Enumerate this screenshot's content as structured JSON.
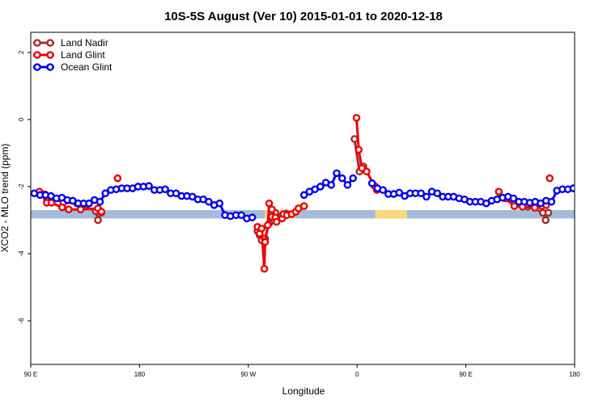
{
  "chart_data": {
    "type": "line",
    "title": "10S-5S August (Ver 10)   2015-01-01 to 2020-12-18",
    "xlabel": "Longitude",
    "ylabel": "XCO2 - MLO trend (ppm)",
    "xlim": [
      90,
      450
    ],
    "ylim": [
      -7.3,
      2.6
    ],
    "x_ticks": [
      {
        "value": 90,
        "label": "90 E"
      },
      {
        "value": 162,
        "label": "180"
      },
      {
        "value": 234,
        "label": "90 W"
      },
      {
        "value": 306,
        "label": "0"
      },
      {
        "value": 378,
        "label": "90 E"
      },
      {
        "value": 450,
        "label": "180"
      }
    ],
    "y_ticks": [
      {
        "value": 2,
        "label": "2"
      },
      {
        "value": 0,
        "label": "0"
      },
      {
        "value": -2,
        "label": "-2"
      },
      {
        "value": -4,
        "label": "-4"
      },
      {
        "value": -6,
        "label": "-6"
      }
    ],
    "legend_position": "top-left",
    "map_strip": {
      "y_range": [
        -2.95,
        -2.7
      ],
      "ocean_color": "#a4bcd9",
      "land_color": "#f8d878",
      "land_spans": [
        [
          245,
          265
        ],
        [
          318,
          339
        ]
      ]
    },
    "series": [
      {
        "name": "Land Nadir",
        "color": "#a52a2a",
        "segments": [
          [
            [
              95.7,
              -2.23
            ],
            [
              99.3,
              -2.23
            ],
            [
              100.6,
              -2.35
            ],
            [
              103.7,
              -2.35
            ],
            [
              111.6,
              -2.47
            ],
            [
              120.6,
              -2.5
            ],
            [
              133.0,
              -2.73
            ],
            [
              134.5,
              -3.0
            ],
            [
              136.8,
              -2.77
            ]
          ],
          [
            [
              240.1,
              -3.33
            ],
            [
              241.5,
              -3.45
            ],
            [
              242.8,
              -3.6
            ],
            [
              245.1,
              -3.55
            ],
            [
              247.8,
              -3.1
            ],
            [
              249.6,
              -2.9
            ],
            [
              251.9,
              -2.78
            ],
            [
              255.5,
              -2.9
            ],
            [
              259.1,
              -2.8
            ]
          ],
          [
            [
              304.3,
              -0.58
            ],
            [
              307.6,
              -1.55
            ],
            [
              310.2,
              -1.4
            ]
          ],
          [
            [
              401.1,
              -2.3
            ],
            [
              404.7,
              -2.35
            ],
            [
              410.1,
              -2.45
            ],
            [
              415.5,
              -2.55
            ],
            [
              419.1,
              -2.6
            ],
            [
              423.6,
              -2.58
            ],
            [
              427.2,
              -2.65
            ],
            [
              429.0,
              -2.78
            ],
            [
              430.8,
              -3.0
            ],
            [
              432.6,
              -2.78
            ]
          ]
        ]
      },
      {
        "name": "Land Glint",
        "color": "#ee0000",
        "segments": [
          [
            [
              95.7,
              -2.15
            ],
            [
              99.3,
              -2.23
            ],
            [
              100.6,
              -2.48
            ],
            [
              103.7,
              -2.48
            ],
            [
              110.8,
              -2.62
            ],
            [
              115.1,
              -2.68
            ],
            [
              123.0,
              -2.68
            ],
            [
              134.5,
              -2.65
            ],
            [
              136.8,
              -2.75
            ]
          ],
          [
            [
              147.5,
              -1.75
            ]
          ],
          [
            [
              240.1,
              -3.2
            ],
            [
              241.5,
              -3.4
            ],
            [
              242.8,
              -3.25
            ],
            [
              244.6,
              -4.45
            ],
            [
              245.1,
              -3.65
            ],
            [
              246.9,
              -3.15
            ],
            [
              247.8,
              -2.5
            ],
            [
              249.6,
              -2.68
            ],
            [
              251.9,
              -2.92
            ],
            [
              252.7,
              -3.05
            ],
            [
              256.4,
              -2.95
            ],
            [
              257.2,
              -2.82
            ],
            [
              259.5,
              -2.85
            ],
            [
              262.7,
              -2.82
            ],
            [
              265.4,
              -2.75
            ],
            [
              267.2,
              -2.65
            ],
            [
              270.9,
              -2.58
            ]
          ],
          [
            [
              305.6,
              0.05
            ],
            [
              307.1,
              -0.9
            ],
            [
              309.2,
              -1.45
            ],
            [
              312.3,
              -1.55
            ],
            [
              317.6,
              -1.98
            ],
            [
              319.1,
              -2.1
            ]
          ],
          [
            [
              399.8,
              -2.15
            ],
            [
              404.0,
              -2.35
            ],
            [
              410.1,
              -2.58
            ],
            [
              415.5,
              -2.6
            ],
            [
              423.6,
              -2.63
            ],
            [
              428.1,
              -2.58
            ],
            [
              431.2,
              -2.55
            ]
          ],
          [
            [
              433.5,
              -1.75
            ]
          ]
        ]
      },
      {
        "name": "Ocean Glint",
        "color": "#0000ee",
        "segments": [
          [
            [
              92.3,
              -2.2
            ],
            [
              96.2,
              -2.25
            ],
            [
              99.8,
              -2.25
            ],
            [
              103.4,
              -2.28
            ],
            [
              107.0,
              -2.35
            ],
            [
              110.6,
              -2.33
            ],
            [
              114.2,
              -2.4
            ],
            [
              117.8,
              -2.42
            ],
            [
              121.4,
              -2.5
            ],
            [
              125.0,
              -2.5
            ],
            [
              128.6,
              -2.5
            ],
            [
              132.2,
              -2.4
            ],
            [
              135.8,
              -2.45
            ],
            [
              139.4,
              -2.2
            ],
            [
              143.0,
              -2.1
            ],
            [
              146.6,
              -2.08
            ],
            [
              150.2,
              -2.05
            ],
            [
              153.8,
              -2.05
            ],
            [
              157.4,
              -2.05
            ],
            [
              161.0,
              -2.0
            ],
            [
              164.6,
              -2.0
            ],
            [
              168.2,
              -1.98
            ],
            [
              171.8,
              -2.1
            ],
            [
              175.4,
              -2.1
            ],
            [
              179.0,
              -2.08
            ],
            [
              182.6,
              -2.2
            ],
            [
              186.2,
              -2.2
            ],
            [
              189.8,
              -2.28
            ],
            [
              193.4,
              -2.28
            ],
            [
              197.0,
              -2.3
            ],
            [
              200.6,
              -2.38
            ],
            [
              204.2,
              -2.38
            ],
            [
              207.8,
              -2.45
            ],
            [
              211.4,
              -2.55
            ],
            [
              215.0,
              -2.5
            ],
            [
              218.6,
              -2.85
            ],
            [
              222.2,
              -2.88
            ],
            [
              225.8,
              -2.85
            ],
            [
              229.4,
              -2.85
            ],
            [
              233.0,
              -2.95
            ],
            [
              236.6,
              -2.92
            ]
          ],
          [
            [
              270.9,
              -2.25
            ],
            [
              274.5,
              -2.15
            ],
            [
              278.1,
              -2.08
            ],
            [
              281.7,
              -2.0
            ],
            [
              285.3,
              -1.88
            ],
            [
              288.9,
              -1.95
            ],
            [
              292.5,
              -1.6
            ],
            [
              296.1,
              -1.75
            ],
            [
              299.7,
              -1.95
            ],
            [
              303.3,
              -1.75
            ]
          ],
          [
            [
              315.9,
              -1.9
            ],
            [
              319.5,
              -2.05
            ],
            [
              323.1,
              -2.1
            ],
            [
              326.7,
              -2.22
            ],
            [
              330.3,
              -2.22
            ],
            [
              333.9,
              -2.18
            ],
            [
              337.5,
              -2.28
            ],
            [
              341.1,
              -2.2
            ],
            [
              344.7,
              -2.2
            ],
            [
              348.3,
              -2.2
            ],
            [
              351.9,
              -2.3
            ],
            [
              355.5,
              -2.15
            ],
            [
              359.1,
              -2.2
            ],
            [
              362.7,
              -2.3
            ],
            [
              366.3,
              -2.3
            ],
            [
              369.9,
              -2.3
            ],
            [
              373.5,
              -2.35
            ],
            [
              377.1,
              -2.38
            ],
            [
              380.7,
              -2.45
            ],
            [
              384.3,
              -2.45
            ],
            [
              387.9,
              -2.45
            ],
            [
              391.5,
              -2.5
            ],
            [
              395.1,
              -2.42
            ],
            [
              398.7,
              -2.38
            ],
            [
              402.3,
              -2.33
            ],
            [
              405.9,
              -2.3
            ],
            [
              409.5,
              -2.35
            ],
            [
              413.1,
              -2.45
            ],
            [
              416.7,
              -2.45
            ],
            [
              420.3,
              -2.48
            ],
            [
              423.9,
              -2.45
            ],
            [
              427.5,
              -2.5
            ],
            [
              431.1,
              -2.42
            ],
            [
              434.7,
              -2.45
            ],
            [
              438.3,
              -2.12
            ],
            [
              441.9,
              -2.08
            ],
            [
              445.5,
              -2.08
            ],
            [
              449.1,
              -2.05
            ],
            [
              452.7,
              -2.0
            ]
          ]
        ]
      }
    ]
  }
}
